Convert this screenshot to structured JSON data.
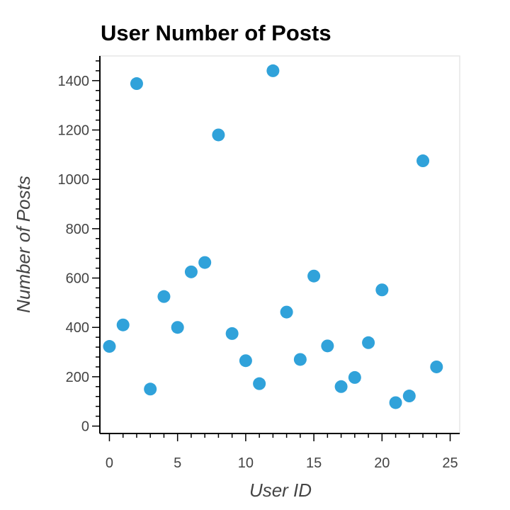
{
  "chart_data": {
    "type": "scatter",
    "title": "User Number of Posts",
    "xlabel": "User ID",
    "ylabel": "Number of Posts",
    "xlim": [
      -0.7,
      25.7
    ],
    "ylim": [
      -30,
      1500
    ],
    "xticks": [
      0,
      5,
      10,
      15,
      20,
      25
    ],
    "yticks": [
      0,
      200,
      400,
      600,
      800,
      1000,
      1200,
      1400
    ],
    "grid": false,
    "point_color": "#30a2da",
    "series": [
      {
        "x": [
          0,
          1,
          2,
          3,
          4,
          5,
          6,
          7,
          8,
          9,
          10,
          11,
          12,
          13,
          14,
          15,
          16,
          17,
          18,
          19,
          20,
          21,
          22,
          23,
          24
        ],
        "y": [
          323,
          410,
          1388,
          150,
          525,
          400,
          625,
          663,
          1180,
          375,
          265,
          172,
          1440,
          462,
          270,
          608,
          325,
          160,
          197,
          338,
          552,
          95,
          122,
          1075,
          240
        ]
      }
    ]
  }
}
